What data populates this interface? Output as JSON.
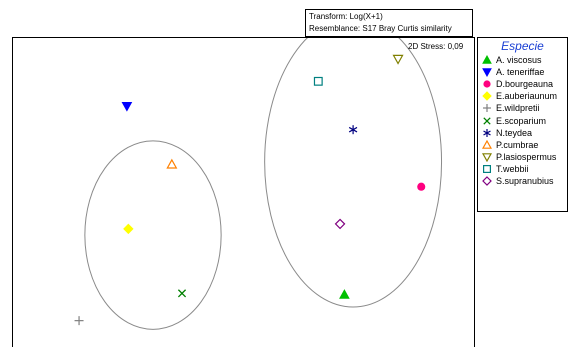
{
  "transform": {
    "line1": "Transform: Log(X+1)",
    "line2": "Resemblance: S17 Bray Curtis similarity"
  },
  "stress": "2D Stress: 0,09",
  "legend": {
    "title": "Especie"
  },
  "chart_data": {
    "type": "scatter",
    "xlabel": "",
    "ylabel": "",
    "axes_ticks": false,
    "legend_placement": "right",
    "series": [
      {
        "name": "A. viscosus",
        "marker": "triangle-up-filled",
        "color": "#00c000",
        "x": 0.72,
        "y": -0.9
      },
      {
        "name": "A. teneriffae",
        "marker": "triangle-down-filled",
        "color": "#0000ff",
        "x": -0.78,
        "y": 0.62
      },
      {
        "name": "D.bourgeauna",
        "marker": "circle-filled",
        "color": "#ff0080",
        "x": 1.25,
        "y": -0.03
      },
      {
        "name": "E.auberiaunum",
        "marker": "diamond-filled",
        "color": "#ffff00",
        "x": -0.77,
        "y": -0.37
      },
      {
        "name": "E.wildpretii",
        "marker": "plus",
        "color": "#808080",
        "x": -1.11,
        "y": -1.11
      },
      {
        "name": "E.scoparium",
        "marker": "x",
        "color": "#008000",
        "x": -0.4,
        "y": -0.89
      },
      {
        "name": "N.teydea",
        "marker": "asterisk",
        "color": "#000080",
        "x": 0.78,
        "y": 0.43
      },
      {
        "name": "P.cumbrae",
        "marker": "triangle-up-open",
        "color": "#ff8000",
        "x": -0.47,
        "y": 0.15
      },
      {
        "name": "P.lasiospermus",
        "marker": "triangle-down-open",
        "color": "#808000",
        "x": 1.09,
        "y": 1.0
      },
      {
        "name": "T.webbii",
        "marker": "square-open",
        "color": "#008080",
        "x": 0.54,
        "y": 0.82
      },
      {
        "name": "S.supranubius",
        "marker": "diamond-open",
        "color": "#800080",
        "x": 0.69,
        "y": -0.33
      }
    ],
    "groups": [
      {
        "cx": -0.6,
        "cy": -0.42,
        "rx": 0.47,
        "ry": 0.76
      },
      {
        "cx": 0.78,
        "cy": 0.17,
        "rx": 0.61,
        "ry": 1.17
      }
    ]
  }
}
